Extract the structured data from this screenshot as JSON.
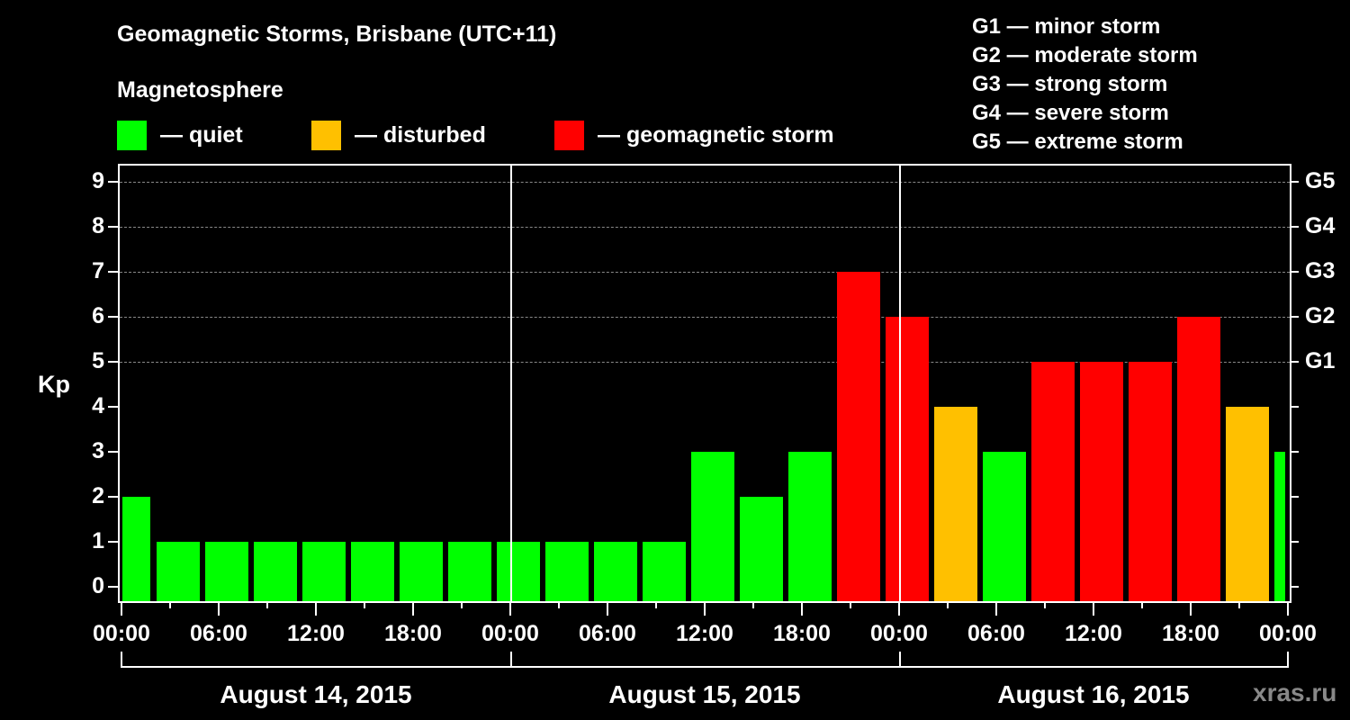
{
  "header": {
    "title": "Geomagnetic Storms, Brisbane (UTC+11)",
    "subtitle": "Magnetosphere"
  },
  "legend": [
    {
      "label": "— quiet",
      "color": "#00ff00"
    },
    {
      "label": "— disturbed",
      "color": "#ffc000"
    },
    {
      "label": "— geomagnetic storm",
      "color": "#ff0000"
    }
  ],
  "g_legend": [
    "G1 — minor storm",
    "G2 — moderate storm",
    "G3 — strong storm",
    "G4 — severe storm",
    "G5 — extreme storm"
  ],
  "axis": {
    "ylabel": "Kp",
    "yticks": [
      "0",
      "1",
      "2",
      "3",
      "4",
      "5",
      "6",
      "7",
      "8",
      "9"
    ],
    "right_ticks": [
      {
        "kp": 5,
        "label": "G1"
      },
      {
        "kp": 6,
        "label": "G2"
      },
      {
        "kp": 7,
        "label": "G3"
      },
      {
        "kp": 8,
        "label": "G4"
      },
      {
        "kp": 9,
        "label": "G5"
      }
    ],
    "xticks": [
      "00:00",
      "06:00",
      "12:00",
      "18:00",
      "00:00",
      "06:00",
      "12:00",
      "18:00",
      "00:00",
      "06:00",
      "12:00",
      "18:00",
      "00:00"
    ],
    "dates": [
      "August 14, 2015",
      "August 15, 2015",
      "August 16, 2015"
    ]
  },
  "watermark": "xras.ru",
  "chart_data": {
    "type": "bar",
    "title": "Geomagnetic Storms, Brisbane (UTC+11)",
    "xlabel": "",
    "ylabel": "Kp",
    "ylim": [
      0,
      9
    ],
    "grid": "dashed horizontal at Kp 5-9",
    "categories": [
      "Aug 14 00:00",
      "Aug 14 03:00",
      "Aug 14 06:00",
      "Aug 14 09:00",
      "Aug 14 12:00",
      "Aug 14 15:00",
      "Aug 14 18:00",
      "Aug 14 21:00",
      "Aug 15 00:00",
      "Aug 15 03:00",
      "Aug 15 06:00",
      "Aug 15 09:00",
      "Aug 15 12:00",
      "Aug 15 15:00",
      "Aug 15 18:00",
      "Aug 15 21:00",
      "Aug 16 00:00",
      "Aug 16 03:00",
      "Aug 16 06:00",
      "Aug 16 09:00",
      "Aug 16 12:00",
      "Aug 16 15:00",
      "Aug 16 18:00",
      "Aug 16 21:00",
      "Aug 17 00:00"
    ],
    "values": [
      2,
      1,
      1,
      1,
      1,
      1,
      1,
      1,
      1,
      1,
      1,
      1,
      3,
      2,
      3,
      7,
      6,
      4,
      3,
      5,
      5,
      5,
      6,
      4,
      3
    ],
    "colors": [
      "green",
      "green",
      "green",
      "green",
      "green",
      "green",
      "green",
      "green",
      "green",
      "green",
      "green",
      "green",
      "green",
      "green",
      "green",
      "red",
      "red",
      "orange",
      "green",
      "red",
      "red",
      "red",
      "red",
      "orange",
      "green"
    ],
    "legend": [
      "quiet",
      "disturbed",
      "geomagnetic storm"
    ],
    "right_axis": {
      "5": "G1",
      "6": "G2",
      "7": "G3",
      "8": "G4",
      "9": "G5"
    }
  }
}
